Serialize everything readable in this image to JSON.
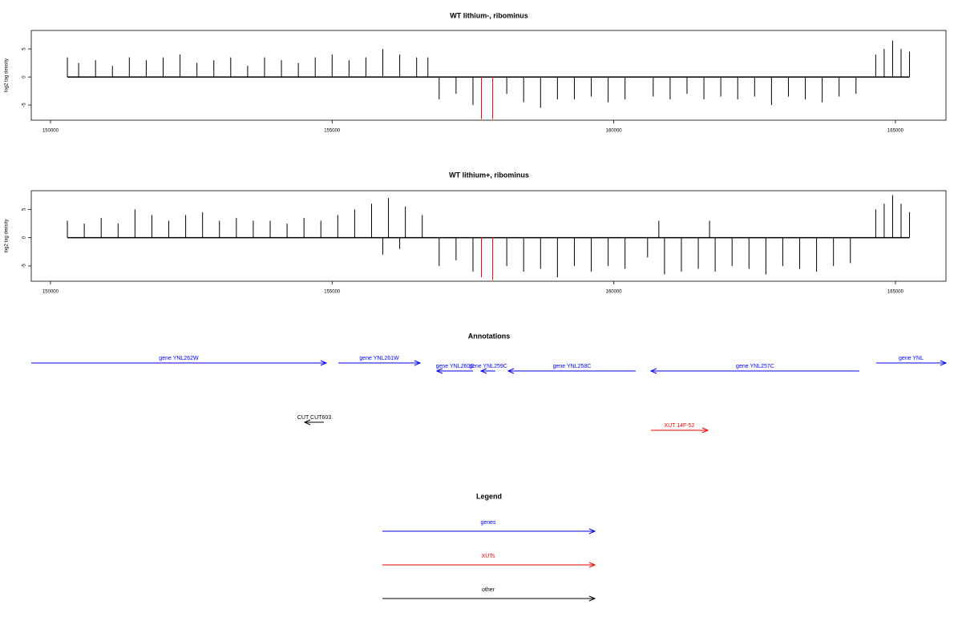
{
  "chart_data": [
    {
      "type": "bar",
      "title": "WT lithium-, ribominus",
      "ylabel": "log2 tag density",
      "xlim": [
        149659,
        165897
      ],
      "ylim": [
        -7.7,
        8.3
      ],
      "xticks": [
        150000,
        155000,
        160000,
        165000
      ],
      "yticks": [
        -5,
        0,
        5
      ],
      "series": [
        {
          "color": "#000000",
          "x": [
            150300,
            150500,
            150800,
            151100,
            151400,
            151700,
            152000,
            152300,
            152600,
            152900,
            153200,
            153500,
            153800,
            154100,
            154400,
            154700,
            155000,
            155300,
            155600,
            155900,
            156200,
            156500,
            156700,
            156900,
            157200,
            157500,
            158100,
            158400,
            158700,
            159000,
            159300,
            159600,
            159900,
            160200,
            160700,
            161000,
            161300,
            161600,
            161900,
            162200,
            162500,
            162800,
            163100,
            163400,
            163700,
            164000,
            164300,
            164650,
            164800,
            164950,
            165100,
            165250
          ],
          "values": [
            3.5,
            2.5,
            3,
            2,
            3.5,
            3,
            3.5,
            4,
            2.5,
            3,
            3.5,
            2,
            3.5,
            3,
            2.5,
            3.5,
            4,
            3,
            3.5,
            5,
            4,
            3.5,
            3.5,
            -4,
            -3,
            -5,
            -3,
            -4.5,
            -5.5,
            -4,
            -4,
            -3.5,
            -4.5,
            -4,
            -3.5,
            -4,
            -3,
            -4,
            -3.5,
            -4,
            -3.5,
            -5,
            -3.5,
            -4,
            -4.5,
            -3.5,
            -3,
            4,
            5,
            6.5,
            5,
            4.5
          ]
        },
        {
          "color": "#ff0000",
          "x": [
            157650,
            157850
          ],
          "values": [
            -7.5,
            -7.5
          ]
        }
      ]
    },
    {
      "type": "bar",
      "title": "WT lithium+, ribominus",
      "ylabel": "log2 tag density",
      "xlim": [
        149659,
        165897
      ],
      "ylim": [
        -7.7,
        8.3
      ],
      "xticks": [
        150000,
        155000,
        160000,
        165000
      ],
      "yticks": [
        -5,
        0,
        5
      ],
      "series": [
        {
          "color": "#000000",
          "x": [
            150300,
            150600,
            150900,
            151200,
            151500,
            151800,
            152100,
            152400,
            152700,
            153000,
            153300,
            153600,
            153900,
            154200,
            154500,
            154800,
            155100,
            155400,
            155700,
            155900,
            156000,
            156200,
            156300,
            156600,
            156900,
            157200,
            157500,
            158100,
            158400,
            158700,
            159000,
            159300,
            159600,
            159900,
            160200,
            160600,
            160800,
            160900,
            161200,
            161500,
            161700,
            161800,
            162100,
            162400,
            162700,
            163000,
            163300,
            163600,
            163900,
            164200,
            164650,
            164800,
            164950,
            165100,
            165250
          ],
          "values": [
            3,
            2.5,
            3.5,
            2.5,
            5,
            4,
            3,
            4,
            4.5,
            3,
            3.5,
            3,
            3,
            2.5,
            3.5,
            3,
            4,
            5,
            6,
            -3,
            7,
            -2,
            5.5,
            4,
            -5,
            -4,
            -6,
            -5,
            -6,
            -5.5,
            -7,
            -5,
            -6,
            -5,
            -5.5,
            -3.5,
            3,
            -6.5,
            -6,
            -5.5,
            3,
            -6,
            -5,
            -5.5,
            -6.5,
            -5,
            -5.5,
            -6,
            -5,
            -4.5,
            5,
            6,
            7.5,
            6,
            4.5
          ]
        },
        {
          "color": "#ff0000",
          "x": [
            157650,
            157850
          ],
          "values": [
            -7,
            -7.5
          ]
        }
      ]
    }
  ],
  "annotations": {
    "title": "Annotations",
    "features": [
      {
        "label": "gene YNL262W",
        "from": 149659,
        "to": 154895,
        "color": "#0000ff"
      },
      {
        "label": "gene YNL261W",
        "from": 155109,
        "to": 156561,
        "color": "#0000ff"
      },
      {
        "label": "gene YNL260C",
        "from": 157500,
        "to": 156859,
        "color": "#0000ff"
      },
      {
        "label": "gene YNL259C",
        "from": 157898,
        "to": 157642,
        "color": "#0000ff"
      },
      {
        "label": "gene YNL258C",
        "from": 160389,
        "to": 158126,
        "color": "#0000ff"
      },
      {
        "label": "gene YNL257C",
        "from": 164359,
        "to": 160659,
        "color": "#0000ff"
      },
      {
        "label": "gene YNL",
        "from": 164658,
        "to": 165897,
        "color": "#0000ff"
      },
      {
        "label": "CUT CUT603",
        "from": 154853,
        "to": 154512,
        "color": "#000000"
      },
      {
        "label": "XUT 14F-52",
        "from": 160659,
        "to": 161670,
        "color": "#ff0000"
      }
    ]
  },
  "legend": {
    "title": "Legend",
    "items": [
      {
        "label": "genes",
        "color": "#0000ff"
      },
      {
        "label": "XUTs",
        "color": "#ff0000"
      },
      {
        "label": "other",
        "color": "#000000"
      }
    ]
  }
}
